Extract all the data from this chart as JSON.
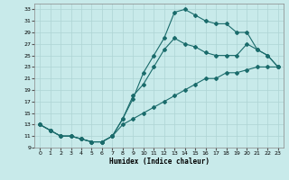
{
  "xlabel": "Humidex (Indice chaleur)",
  "bg_color": "#c8eaea",
  "grid_color": "#aed4d4",
  "line_color": "#1a6b6b",
  "xlim": [
    -0.5,
    23.5
  ],
  "ylim": [
    9,
    34
  ],
  "xticks": [
    0,
    1,
    2,
    3,
    4,
    5,
    6,
    7,
    8,
    9,
    10,
    11,
    12,
    13,
    14,
    15,
    16,
    17,
    18,
    19,
    20,
    21,
    22,
    23
  ],
  "yticks": [
    9,
    11,
    13,
    15,
    17,
    19,
    21,
    23,
    25,
    27,
    29,
    31,
    33
  ],
  "line1_x": [
    0,
    1,
    2,
    3,
    4,
    5,
    6,
    7,
    8,
    9,
    10,
    11,
    12,
    13,
    14,
    15,
    16,
    17,
    18,
    19,
    20,
    21,
    22,
    23
  ],
  "line1_y": [
    13,
    12,
    11,
    11,
    10.5,
    10,
    10,
    11,
    14,
    17.5,
    22,
    25,
    28,
    32.5,
    33,
    32,
    31,
    30.5,
    30.5,
    29,
    29,
    26,
    25,
    23
  ],
  "line2_x": [
    0,
    1,
    2,
    3,
    4,
    5,
    6,
    7,
    8,
    9,
    10,
    11,
    12,
    13,
    14,
    15,
    16,
    17,
    18,
    19,
    20,
    21,
    22,
    23
  ],
  "line2_y": [
    13,
    12,
    11,
    11,
    10.5,
    10,
    10,
    11,
    14,
    18,
    20,
    23,
    26,
    28,
    27,
    26.5,
    25.5,
    25,
    25,
    25,
    27,
    26,
    25,
    23
  ],
  "line3_x": [
    0,
    1,
    2,
    3,
    4,
    5,
    6,
    7,
    8,
    9,
    10,
    11,
    12,
    13,
    14,
    15,
    16,
    17,
    18,
    19,
    20,
    21,
    22,
    23
  ],
  "line3_y": [
    13,
    12,
    11,
    11,
    10.5,
    10,
    10,
    11,
    13,
    14,
    15,
    16,
    17,
    18,
    19,
    20,
    21,
    21,
    22,
    22,
    22.5,
    23,
    23,
    23
  ]
}
